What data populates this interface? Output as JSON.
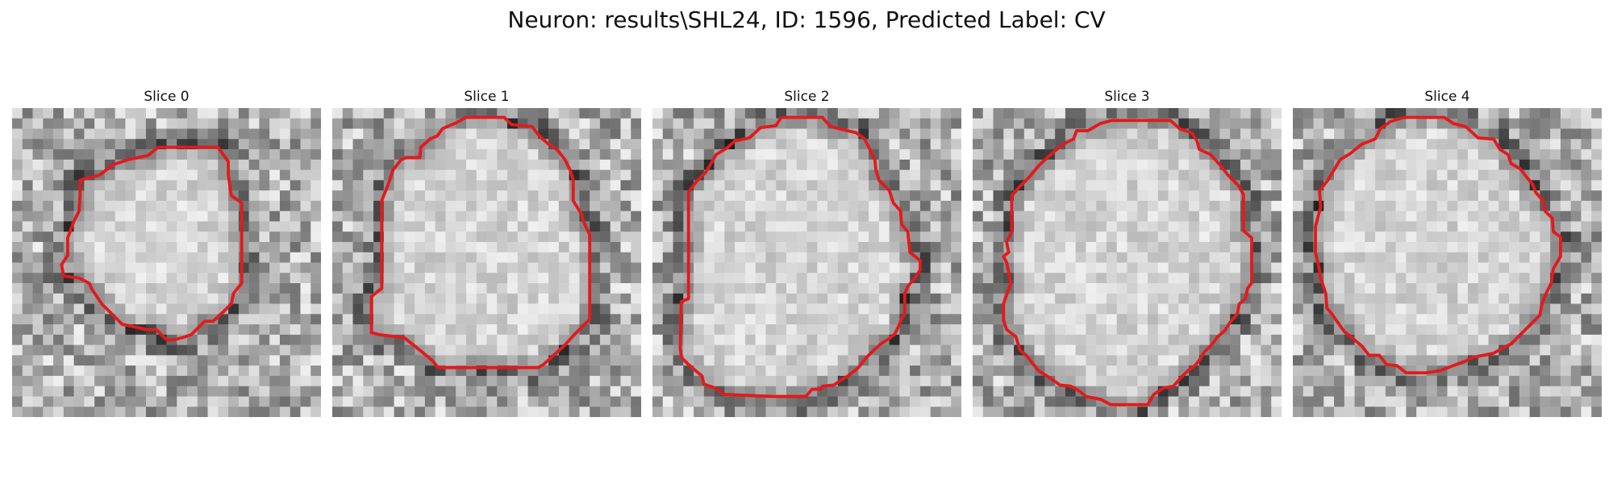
{
  "figure": {
    "title": "Neuron: results\\SHL24, ID: 1596, Predicted Label: CV"
  },
  "colors": {
    "contour": "#e31a1c",
    "background": "#ffffff"
  },
  "panels": [
    {
      "title": "Slice 0"
    },
    {
      "title": "Slice 1"
    },
    {
      "title": "Slice 2"
    },
    {
      "title": "Slice 3"
    },
    {
      "title": "Slice 4"
    }
  ]
}
